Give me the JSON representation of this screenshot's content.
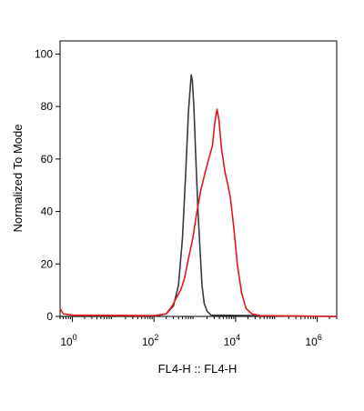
{
  "chart_data": {
    "type": "line",
    "title": "",
    "xlabel": "FL4-H :: FL4-H",
    "ylabel": "Normalized To Mode",
    "xscale": "log",
    "xlim": [
      0.5,
      3000000
    ],
    "ylim": [
      0,
      105
    ],
    "x_ticks": [
      {
        "value": 1,
        "base": "10",
        "exp": "0"
      },
      {
        "value": 100,
        "base": "10",
        "exp": "2"
      },
      {
        "value": 10000,
        "base": "10",
        "exp": "4"
      },
      {
        "value": 1000000,
        "base": "10",
        "exp": "6"
      }
    ],
    "y_ticks": [
      0,
      20,
      40,
      60,
      80,
      100
    ],
    "grid": false,
    "legend": "none",
    "series": [
      {
        "color": "#3a3a3a",
        "points": [
          [
            0.5,
            0
          ],
          [
            100,
            0
          ],
          [
            200,
            1
          ],
          [
            300,
            4
          ],
          [
            400,
            12
          ],
          [
            500,
            30
          ],
          [
            600,
            55
          ],
          [
            700,
            78
          ],
          [
            780,
            88
          ],
          [
            820,
            92
          ],
          [
            870,
            90
          ],
          [
            950,
            80
          ],
          [
            1050,
            62
          ],
          [
            1200,
            40
          ],
          [
            1350,
            25
          ],
          [
            1500,
            12
          ],
          [
            1700,
            5
          ],
          [
            2000,
            2
          ],
          [
            2500,
            0.5
          ],
          [
            3000000,
            0
          ]
        ]
      },
      {
        "color": "#e8141c",
        "points": [
          [
            0.5,
            3
          ],
          [
            0.6,
            1
          ],
          [
            1,
            0.5
          ],
          [
            100,
            0.3
          ],
          [
            200,
            1
          ],
          [
            280,
            4
          ],
          [
            350,
            7
          ],
          [
            450,
            10
          ],
          [
            550,
            14
          ],
          [
            700,
            22
          ],
          [
            900,
            30
          ],
          [
            1100,
            39
          ],
          [
            1400,
            48
          ],
          [
            1800,
            55
          ],
          [
            2200,
            60
          ],
          [
            2700,
            65
          ],
          [
            3100,
            74
          ],
          [
            3500,
            79
          ],
          [
            3900,
            75
          ],
          [
            4500,
            64
          ],
          [
            5500,
            55
          ],
          [
            6500,
            50
          ],
          [
            7500,
            45
          ],
          [
            9000,
            34
          ],
          [
            11000,
            20
          ],
          [
            14000,
            9
          ],
          [
            18000,
            3
          ],
          [
            25000,
            1
          ],
          [
            40000,
            0.3
          ],
          [
            3000000,
            0
          ]
        ]
      }
    ]
  }
}
